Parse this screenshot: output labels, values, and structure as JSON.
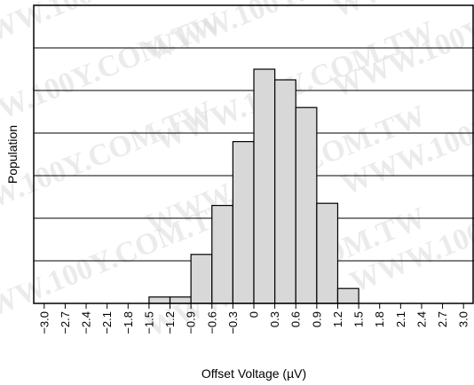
{
  "watermark": "WWW.100Y.COM.TW",
  "chart_data": {
    "type": "bar",
    "title": "",
    "xlabel": "Offset Voltage (µV)",
    "ylabel": "Population",
    "x_range": [
      -3.15,
      3.15
    ],
    "ylim": [
      0,
      7
    ],
    "bin_width": 0.3,
    "grid": "horizontal",
    "x_ticks": [
      "−3.0",
      "−2.7",
      "−2.4",
      "−2.1",
      "−1.8",
      "−1.5",
      "−1.2",
      "−0.9",
      "−0.6",
      "−0.3",
      "0",
      "0.3",
      "0.6",
      "0.9",
      "1.2",
      "1.5",
      "1.8",
      "2.1",
      "2.4",
      "2.7",
      "3.0"
    ],
    "bins": [
      {
        "x": -1.35,
        "value": 0.15
      },
      {
        "x": -1.05,
        "value": 0.15
      },
      {
        "x": -0.75,
        "value": 1.15
      },
      {
        "x": -0.45,
        "value": 2.3
      },
      {
        "x": -0.15,
        "value": 3.8
      },
      {
        "x": 0.15,
        "value": 5.5
      },
      {
        "x": 0.45,
        "value": 5.25
      },
      {
        "x": 0.75,
        "value": 4.6
      },
      {
        "x": 1.05,
        "value": 2.35
      },
      {
        "x": 1.35,
        "value": 0.35
      }
    ],
    "colors": {
      "bar_fill": "#d8d8d8",
      "bar_stroke": "#000000",
      "grid": "#000000"
    }
  }
}
